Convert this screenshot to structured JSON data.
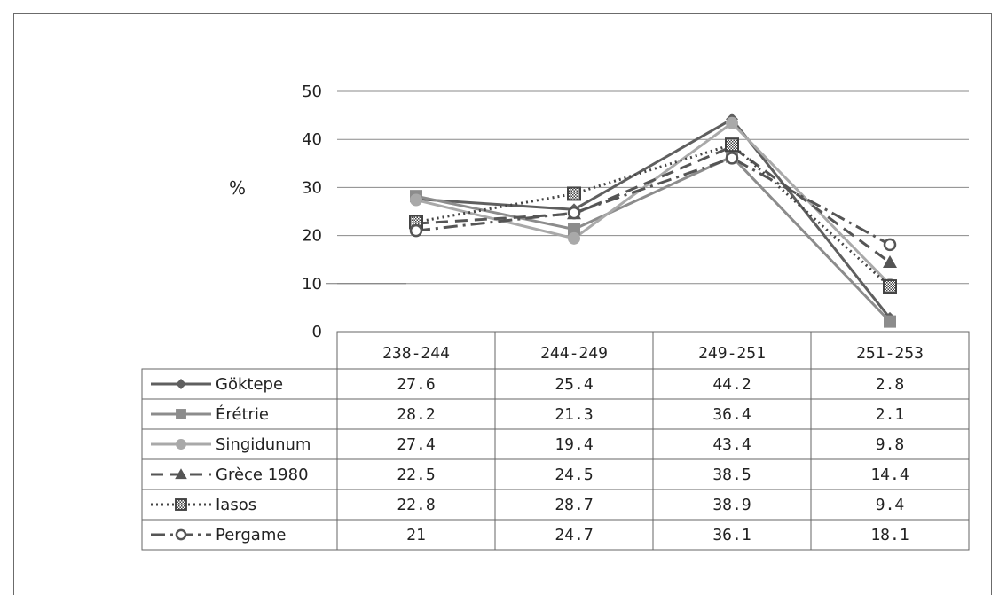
{
  "chart_data": {
    "type": "line",
    "ylabel": "%",
    "ylim": [
      0,
      50
    ],
    "yticks": [
      "0",
      "10",
      "20",
      "30",
      "40",
      "50"
    ],
    "grid": true,
    "legend": "data-table-below",
    "categories": [
      "238-244",
      "244-249",
      "249-251",
      "251-253"
    ],
    "series": [
      {
        "name": "Göktepe",
        "values": [
          27.6,
          25.4,
          44.2,
          2.8
        ],
        "labels": [
          "27.6",
          "25.4",
          "44.2",
          "2.8"
        ],
        "color": "#5f5f5f",
        "marker": "diamond",
        "dash": "solid"
      },
      {
        "name": "Érétrie",
        "values": [
          28.2,
          21.3,
          36.4,
          2.1
        ],
        "labels": [
          "28.2",
          "21.3",
          "36.4",
          "2.1"
        ],
        "color": "#8c8c8c",
        "marker": "square",
        "dash": "solid"
      },
      {
        "name": "Singidunum",
        "values": [
          27.4,
          19.4,
          43.4,
          9.8
        ],
        "labels": [
          "27.4",
          "19.4",
          "43.4",
          "9.8"
        ],
        "color": "#a9a9a9",
        "marker": "circle",
        "dash": "solid"
      },
      {
        "name": "Grèce 1980",
        "values": [
          22.5,
          24.5,
          38.5,
          14.4
        ],
        "labels": [
          "22.5",
          "24.5",
          "38.5",
          "14.4"
        ],
        "color": "#555555",
        "marker": "triangle",
        "dash": "dashed"
      },
      {
        "name": "Iasos",
        "values": [
          22.8,
          28.7,
          38.9,
          9.4
        ],
        "labels": [
          "22.8",
          "28.7",
          "38.9",
          "9.4"
        ],
        "color": "#444444",
        "marker": "hatched-square",
        "dash": "dotted"
      },
      {
        "name": "Pergame",
        "values": [
          21,
          24.7,
          36.1,
          18.1
        ],
        "labels": [
          "21",
          "24.7",
          "36.1",
          "18.1"
        ],
        "color": "#555555",
        "marker": "open-circle",
        "dash": "dash-dot"
      }
    ]
  }
}
